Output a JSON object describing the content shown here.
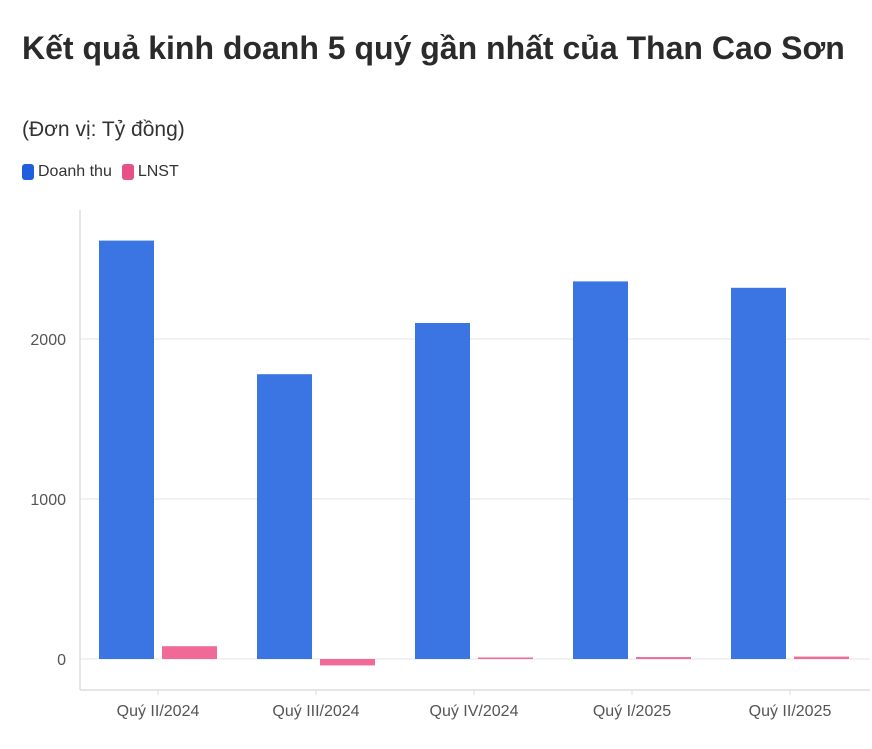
{
  "title": "Kết quả kinh doanh 5 quý gần nhất của Than Cao Sơn",
  "subtitle": "(Đơn vị: Tỷ đồng)",
  "colors": {
    "doanh_thu": "#3b74e3",
    "lnst": "#f06a97",
    "grid": "#e6e6e6",
    "axis": "#dddddd"
  },
  "chart_data": {
    "type": "bar",
    "title": "Kết quả kinh doanh 5 quý gần nhất của Than Cao Sơn",
    "subtitle": "(Đơn vị: Tỷ đồng)",
    "categories": [
      "Quý II/2024",
      "Quý III/2024",
      "Quý IV/2024",
      "Quý I/2025",
      "Quý II/2025"
    ],
    "series": [
      {
        "name": "Doanh thu",
        "values": [
          2615,
          1780,
          2100,
          2360,
          2320
        ]
      },
      {
        "name": "LNST",
        "values": [
          80,
          -40,
          5,
          12,
          15
        ]
      }
    ],
    "yticks": [
      0,
      1000,
      2000
    ],
    "ylim": [
      -200,
      2800
    ],
    "grid": true,
    "legend": "top-left"
  }
}
